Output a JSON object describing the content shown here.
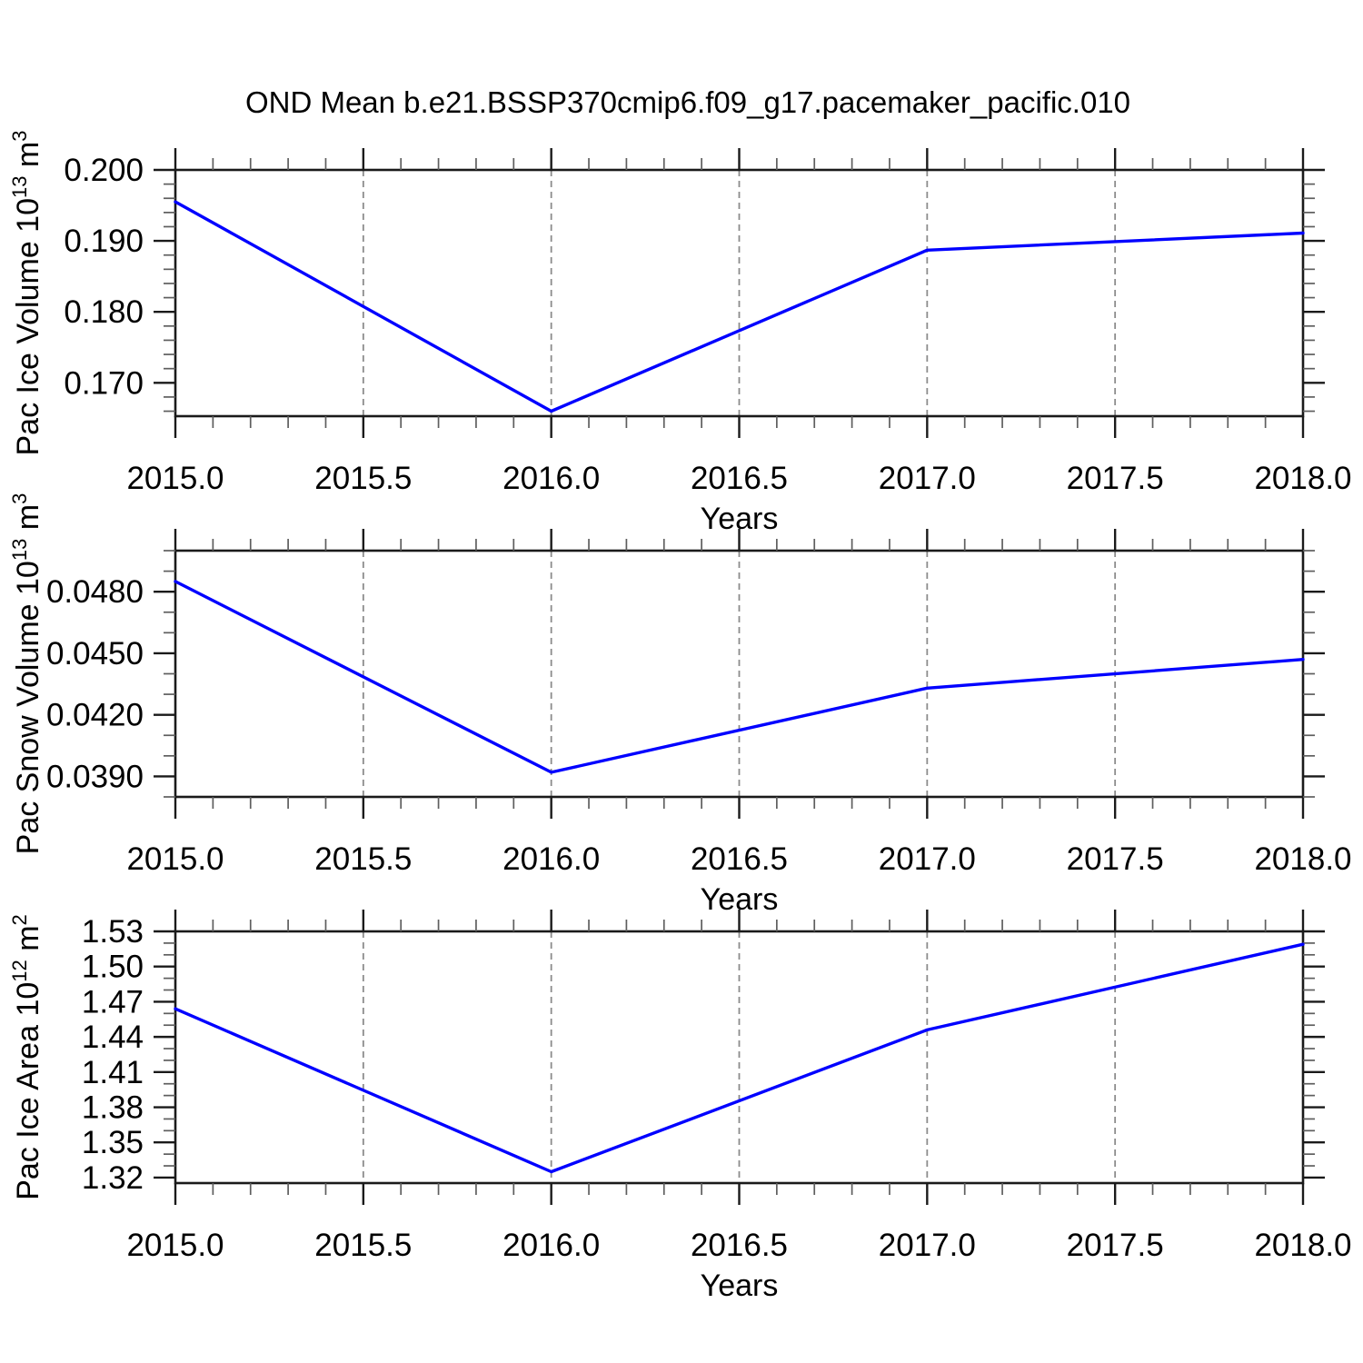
{
  "title": "OND Mean b.e21.BSSP370cmip6.f09_g17.pacemaker_pacific.010",
  "colors": {
    "line": "#0000ff",
    "frame": "#1a1a1a",
    "major_tick": "#1a1a1a",
    "minor_tick": "#5e5e5e",
    "grid": "#8c8c8c",
    "text": "#000000",
    "background": "#ffffff"
  },
  "chart_data": [
    {
      "id": "pac-ice-volume",
      "type": "line",
      "xlabel": "Years",
      "ylabel_text": "Pac Ice Volume 10^13 m^3",
      "ylabel_parts": [
        {
          "text": "Pac Ice Volume 10"
        },
        {
          "text": "13",
          "sup": true
        },
        {
          "text": " m"
        },
        {
          "text": "3",
          "sup": true
        }
      ],
      "x": [
        2015.0,
        2016.0,
        2017.0,
        2018.0
      ],
      "y": [
        0.1955,
        0.166,
        0.1887,
        0.1911
      ],
      "xlim": [
        2015.0,
        2018.0
      ],
      "ylim": [
        0.1653,
        0.2
      ],
      "xticks": [
        2015.0,
        2015.5,
        2016.0,
        2016.5,
        2017.0,
        2017.5,
        2018.0
      ],
      "xtick_labels": [
        "2015.0",
        "2015.5",
        "2016.0",
        "2016.5",
        "2017.0",
        "2017.5",
        "2018.0"
      ],
      "xminor_step": 0.1,
      "yticks": [
        0.17,
        0.18,
        0.19,
        0.2
      ],
      "ytick_labels": [
        "0.170",
        "0.180",
        "0.190",
        "0.200"
      ],
      "yminor_step": 0.002,
      "grid_x": [
        2015.5,
        2016.0,
        2016.5,
        2017.0,
        2017.5
      ],
      "grid_style": "dashed"
    },
    {
      "id": "pac-snow-volume",
      "type": "line",
      "xlabel": "Years",
      "ylabel_text": "Pac Snow Volume 10^13 m^3",
      "ylabel_parts": [
        {
          "text": "Pac Snow Volume 10"
        },
        {
          "text": "13",
          "sup": true
        },
        {
          "text": " m"
        },
        {
          "text": "3",
          "sup": true
        }
      ],
      "x": [
        2015.0,
        2016.0,
        2017.0,
        2018.0
      ],
      "y": [
        0.0485,
        0.0392,
        0.0433,
        0.0447
      ],
      "xlim": [
        2015.0,
        2018.0
      ],
      "ylim": [
        0.038,
        0.05
      ],
      "xticks": [
        2015.0,
        2015.5,
        2016.0,
        2016.5,
        2017.0,
        2017.5,
        2018.0
      ],
      "xtick_labels": [
        "2015.0",
        "2015.5",
        "2016.0",
        "2016.5",
        "2017.0",
        "2017.5",
        "2018.0"
      ],
      "xminor_step": 0.1,
      "yticks": [
        0.039,
        0.042,
        0.045,
        0.048
      ],
      "ytick_labels": [
        "0.0390",
        "0.0420",
        "0.0450",
        "0.0480"
      ],
      "yminor_step": 0.001,
      "grid_x": [
        2015.5,
        2016.0,
        2016.5,
        2017.0,
        2017.5
      ],
      "grid_style": "dashed"
    },
    {
      "id": "pac-ice-area",
      "type": "line",
      "xlabel": "Years",
      "ylabel_text": "Pac Ice Area 10^12 m^2",
      "ylabel_parts": [
        {
          "text": "Pac Ice Area 10"
        },
        {
          "text": "12",
          "sup": true
        },
        {
          "text": " m"
        },
        {
          "text": "2",
          "sup": true
        }
      ],
      "x": [
        2015.0,
        2016.0,
        2017.0,
        2018.0
      ],
      "y": [
        1.464,
        1.325,
        1.446,
        1.519
      ],
      "xlim": [
        2015.0,
        2018.0
      ],
      "ylim": [
        1.3153,
        1.53
      ],
      "xticks": [
        2015.0,
        2015.5,
        2016.0,
        2016.5,
        2017.0,
        2017.5,
        2018.0
      ],
      "xtick_labels": [
        "2015.0",
        "2015.5",
        "2016.0",
        "2016.5",
        "2017.0",
        "2017.5",
        "2018.0"
      ],
      "xminor_step": 0.1,
      "yticks": [
        1.32,
        1.35,
        1.38,
        1.41,
        1.44,
        1.47,
        1.5,
        1.53
      ],
      "ytick_labels": [
        "1.32",
        "1.35",
        "1.38",
        "1.41",
        "1.44",
        "1.47",
        "1.50",
        "1.53"
      ],
      "yminor_step": 0.01,
      "grid_x": [
        2015.5,
        2016.0,
        2016.5,
        2017.0,
        2017.5
      ],
      "grid_style": "dashed"
    }
  ]
}
